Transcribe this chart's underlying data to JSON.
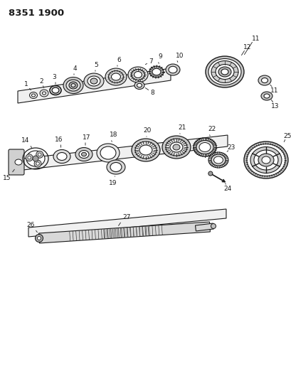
{
  "title": "8351 1900",
  "bg_color": "#ffffff",
  "line_color": "#1a1a1a",
  "gray_light": "#c8c8c8",
  "gray_mid": "#a0a0a0",
  "gray_dark": "#606060"
}
